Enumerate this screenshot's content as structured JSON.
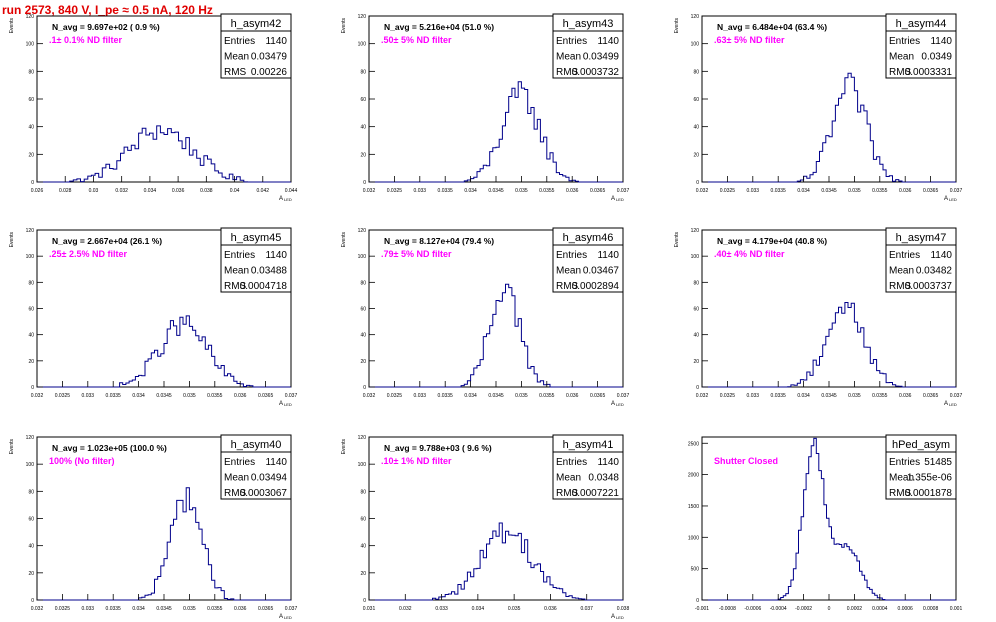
{
  "page_title": "run 2573,   840 V, I_pe ≈ 0.5 nA, 120 Hz",
  "chart_data": [
    {
      "type": "histogram",
      "title": "h_asym42",
      "stat_labels": {
        "entries": "Entries",
        "mean": "Mean",
        "rms": "RMS"
      },
      "entries": "1140",
      "mean": "0.03479",
      "rms": "0.00226",
      "annotation": "N_avg = 9.697e+02 ( 0.9 %)",
      "filter_label": ".1± 0.1% ND filter",
      "ylabel": "Events",
      "xlabel": "A",
      "xlabel_sub": "LED",
      "xlim": [
        0.026,
        0.044
      ],
      "ylim": [
        0,
        120
      ],
      "xticks": [
        0.026,
        0.028,
        0.03,
        0.032,
        0.034,
        0.036,
        0.038,
        0.04,
        0.042,
        0.044
      ],
      "xtick_labels": [
        "0.026",
        "0.028",
        "0.03",
        "0.032",
        "0.034",
        "0.036",
        "0.038",
        "0.04",
        "0.042",
        "0.044"
      ],
      "yticks": [
        0,
        20,
        40,
        60,
        80,
        100,
        120
      ],
      "ytick_labels": [
        "0",
        "20",
        "40",
        "60",
        "80",
        "100",
        "120"
      ],
      "mu": 0.03479,
      "sigma": 0.00226,
      "peak": 38,
      "bins": 70
    },
    {
      "type": "histogram",
      "title": "h_asym43",
      "stat_labels": {
        "entries": "Entries",
        "mean": "Mean",
        "rms": "RMS"
      },
      "entries": "1140",
      "mean": "0.03499",
      "rms": "0.0003732",
      "annotation": "N_avg = 5.216e+04 (51.0 %)",
      "filter_label": ".50± 5% ND filter",
      "ylabel": "Events",
      "xlabel": "A",
      "xlabel_sub": "LED",
      "xlim": [
        0.032,
        0.037
      ],
      "ylim": [
        0,
        120
      ],
      "xticks": [
        0.032,
        0.0325,
        0.033,
        0.0335,
        0.034,
        0.0345,
        0.035,
        0.0355,
        0.036,
        0.0365,
        0.037
      ],
      "xtick_labels": [
        "0.032",
        "0.0325",
        "0.033",
        "0.0335",
        "0.034",
        "0.0345",
        "0.035",
        "0.0355",
        "0.036",
        "0.0365",
        "0.037"
      ],
      "yticks": [
        0,
        20,
        40,
        60,
        80,
        100,
        120
      ],
      "ytick_labels": [
        "0",
        "20",
        "40",
        "60",
        "80",
        "100",
        "120"
      ],
      "mu": 0.03499,
      "sigma": 0.0003732,
      "peak": 63,
      "bins": 80
    },
    {
      "type": "histogram",
      "title": "h_asym44",
      "stat_labels": {
        "entries": "Entries",
        "mean": "Mean",
        "rms": "RMS"
      },
      "entries": "1140",
      "mean": "0.0349",
      "rms": "0.0003331",
      "annotation": "N_avg = 6.484e+04 (63.4 %)",
      "filter_label": ".63± 5% ND filter",
      "ylabel": "Events",
      "xlabel": "A",
      "xlabel_sub": "LED",
      "xlim": [
        0.032,
        0.037
      ],
      "ylim": [
        0,
        120
      ],
      "xticks": [
        0.032,
        0.0325,
        0.033,
        0.0335,
        0.034,
        0.0345,
        0.035,
        0.0355,
        0.036,
        0.0365,
        0.037
      ],
      "xtick_labels": [
        "0.032",
        "0.0325",
        "0.033",
        "0.0335",
        "0.034",
        "0.0345",
        "0.035",
        "0.0355",
        "0.036",
        "0.0365",
        "0.037"
      ],
      "yticks": [
        0,
        20,
        40,
        60,
        80,
        100,
        120
      ],
      "ytick_labels": [
        "0",
        "20",
        "40",
        "60",
        "80",
        "100",
        "120"
      ],
      "mu": 0.0349,
      "sigma": 0.0003331,
      "peak": 68,
      "bins": 80
    },
    {
      "type": "histogram",
      "title": "h_asym45",
      "stat_labels": {
        "entries": "Entries",
        "mean": "Mean",
        "rms": "RMS"
      },
      "entries": "1140",
      "mean": "0.03488",
      "rms": "0.0004718",
      "annotation": "N_avg = 2.667e+04 (26.1 %)",
      "filter_label": ".25± 2.5% ND filter",
      "ylabel": "Events",
      "xlabel": "A",
      "xlabel_sub": "LED",
      "xlim": [
        0.032,
        0.037
      ],
      "ylim": [
        0,
        120
      ],
      "xticks": [
        0.032,
        0.0325,
        0.033,
        0.0335,
        0.034,
        0.0345,
        0.035,
        0.0355,
        0.036,
        0.0365,
        0.037
      ],
      "xtick_labels": [
        "0.032",
        "0.0325",
        "0.033",
        "0.0335",
        "0.034",
        "0.0345",
        "0.035",
        "0.0355",
        "0.036",
        "0.0365",
        "0.037"
      ],
      "yticks": [
        0,
        20,
        40,
        60,
        80,
        100,
        120
      ],
      "ytick_labels": [
        "0",
        "20",
        "40",
        "60",
        "80",
        "100",
        "120"
      ],
      "mu": 0.03488,
      "sigma": 0.0004718,
      "peak": 48,
      "bins": 80
    },
    {
      "type": "histogram",
      "title": "h_asym46",
      "stat_labels": {
        "entries": "Entries",
        "mean": "Mean",
        "rms": "RMS"
      },
      "entries": "1140",
      "mean": "0.03467",
      "rms": "0.0002894",
      "annotation": "N_avg = 8.127e+04 (79.4 %)",
      "filter_label": ".79± 5% ND filter",
      "ylabel": "Events",
      "xlabel": "A",
      "xlabel_sub": "LED",
      "xlim": [
        0.032,
        0.037
      ],
      "ylim": [
        0,
        120
      ],
      "xticks": [
        0.032,
        0.0325,
        0.033,
        0.0335,
        0.034,
        0.0345,
        0.035,
        0.0355,
        0.036,
        0.0365,
        0.037
      ],
      "xtick_labels": [
        "0.032",
        "0.0325",
        "0.033",
        "0.0335",
        "0.034",
        "0.0345",
        "0.035",
        "0.0355",
        "0.036",
        "0.0365",
        "0.037"
      ],
      "yticks": [
        0,
        20,
        40,
        60,
        80,
        100,
        120
      ],
      "ytick_labels": [
        "0",
        "20",
        "40",
        "60",
        "80",
        "100",
        "120"
      ],
      "mu": 0.03467,
      "sigma": 0.0002894,
      "peak": 78,
      "bins": 80
    },
    {
      "type": "histogram",
      "title": "h_asym47",
      "stat_labels": {
        "entries": "Entries",
        "mean": "Mean",
        "rms": "RMS"
      },
      "entries": "1140",
      "mean": "0.03482",
      "rms": "0.0003737",
      "annotation": "N_avg = 4.179e+04 (40.8 %)",
      "filter_label": ".40± 4% ND filter",
      "ylabel": "Events",
      "xlabel": "A",
      "xlabel_sub": "LED",
      "xlim": [
        0.032,
        0.037
      ],
      "ylim": [
        0,
        120
      ],
      "xticks": [
        0.032,
        0.0325,
        0.033,
        0.0335,
        0.034,
        0.0345,
        0.035,
        0.0355,
        0.036,
        0.0365,
        0.037
      ],
      "xtick_labels": [
        "0.032",
        "0.0325",
        "0.033",
        "0.0335",
        "0.034",
        "0.0345",
        "0.035",
        "0.0355",
        "0.036",
        "0.0365",
        "0.037"
      ],
      "yticks": [
        0,
        20,
        40,
        60,
        80,
        100,
        120
      ],
      "ytick_labels": [
        "0",
        "20",
        "40",
        "60",
        "80",
        "100",
        "120"
      ],
      "mu": 0.03482,
      "sigma": 0.0003737,
      "peak": 62,
      "bins": 80
    },
    {
      "type": "histogram",
      "title": "h_asym40",
      "stat_labels": {
        "entries": "Entries",
        "mean": "Mean",
        "rms": "RMS"
      },
      "entries": "1140",
      "mean": "0.03494",
      "rms": "0.0003067",
      "annotation": "N_avg = 1.023e+05 (100.0 %)",
      "filter_label": "100% (No filter)",
      "ylabel": "Events",
      "xlabel": "A",
      "xlabel_sub": "LED",
      "xlim": [
        0.032,
        0.037
      ],
      "ylim": [
        0,
        120
      ],
      "xticks": [
        0.032,
        0.0325,
        0.033,
        0.0335,
        0.034,
        0.0345,
        0.035,
        0.0355,
        0.036,
        0.0365,
        0.037
      ],
      "xtick_labels": [
        "0.032",
        "0.0325",
        "0.033",
        "0.0335",
        "0.034",
        "0.0345",
        "0.035",
        "0.0355",
        "0.036",
        "0.0365",
        "0.037"
      ],
      "yticks": [
        0,
        20,
        40,
        60,
        80,
        100,
        120
      ],
      "ytick_labels": [
        "0",
        "20",
        "40",
        "60",
        "80",
        "100",
        "120"
      ],
      "mu": 0.03494,
      "sigma": 0.0003067,
      "peak": 76,
      "bins": 80
    },
    {
      "type": "histogram",
      "title": "h_asym41",
      "stat_labels": {
        "entries": "Entries",
        "mean": "Mean",
        "rms": "RMS"
      },
      "entries": "1140",
      "mean": "0.0348",
      "rms": "0.0007221",
      "annotation": "N_avg = 9.788e+03 ( 9.6 %)",
      "filter_label": ".10± 1% ND filter",
      "ylabel": "Events",
      "xlabel": "A",
      "xlabel_sub": "LED",
      "xlim": [
        0.031,
        0.038
      ],
      "ylim": [
        0,
        120
      ],
      "xticks": [
        0.031,
        0.032,
        0.033,
        0.034,
        0.035,
        0.036,
        0.037,
        0.038
      ],
      "xtick_labels": [
        "0.031",
        "0.032",
        "0.033",
        "0.034",
        "0.035",
        "0.036",
        "0.037",
        "0.038"
      ],
      "yticks": [
        0,
        20,
        40,
        60,
        80,
        100,
        120
      ],
      "ytick_labels": [
        "0",
        "20",
        "40",
        "60",
        "80",
        "100",
        "120"
      ],
      "mu": 0.0348,
      "sigma": 0.0007221,
      "peak": 50,
      "bins": 80
    },
    {
      "type": "histogram",
      "title": "hPed_asym",
      "stat_labels": {
        "entries": "Entries",
        "mean": "Mean",
        "rms": "RMS"
      },
      "entries": "51485",
      "mean": "1.355e-06",
      "rms": "0.0001878",
      "annotation": "",
      "filter_label": "Shutter Closed",
      "ylabel": "",
      "xlabel": "",
      "xlabel_sub": "",
      "xlim": [
        -0.001,
        0.001
      ],
      "ylim": [
        0,
        2600
      ],
      "xticks": [
        -0.001,
        -0.0008,
        -0.0006,
        -0.0004,
        -0.0002,
        0,
        0.0002,
        0.0004,
        0.0006,
        0.0008,
        0.001
      ],
      "xtick_labels": [
        "-0.001",
        "-0.0008",
        "-0.0006",
        "-0.0004",
        "-0.0002",
        "0",
        "0.0002",
        "0.0004",
        "0.0006",
        "0.0008",
        "0.001"
      ],
      "yticks": [
        0,
        500,
        1000,
        1500,
        2000,
        2500
      ],
      "ytick_labels": [
        "0",
        "500",
        "1000",
        "1500",
        "2000",
        "2500"
      ],
      "bimodal": [
        {
          "mu": -0.00012,
          "sigma": 8.5e-05,
          "peak": 2450
        },
        {
          "mu": 0.00014,
          "sigma": 0.0001,
          "peak": 880
        }
      ],
      "bins": 100
    }
  ],
  "colors": {
    "line": "#00008b",
    "annotation": "#ff00ff",
    "title": "#e00000",
    "axis": "#000000"
  }
}
